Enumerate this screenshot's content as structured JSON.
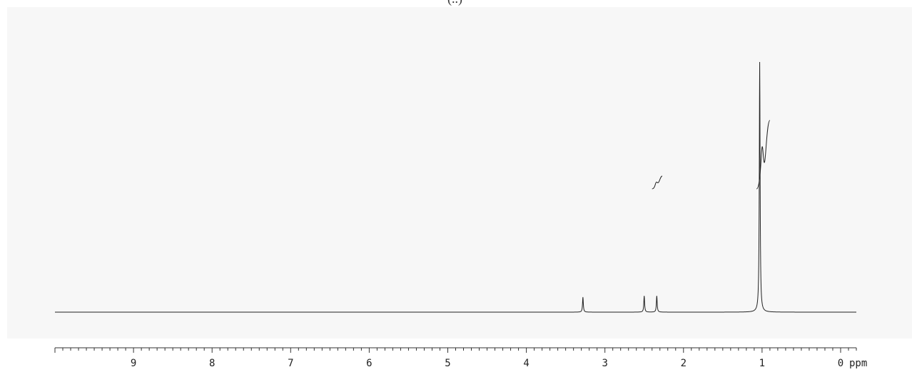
{
  "page": {
    "title_fragment": "(..)"
  },
  "colors": {
    "trace": "#222222",
    "axis": "#333333",
    "panel_bg": "#f7f7f7",
    "page_bg": "#ffffff"
  },
  "chart_data": {
    "type": "line",
    "title": "",
    "xlabel": "ppm",
    "ylabel": "",
    "xlim": [
      10.0,
      -0.2
    ],
    "x_reversed": true,
    "ylim": [
      0,
      100
    ],
    "grid": false,
    "x_major_ticks": [
      9,
      8,
      7,
      6,
      5,
      4,
      3,
      2,
      1,
      0
    ],
    "x_tick_labels": [
      "9",
      "8",
      "7",
      "6",
      "5",
      "4",
      "3",
      "2",
      "1",
      "0"
    ],
    "x_minor_step": 0.1,
    "peaks": [
      {
        "ppm": 3.28,
        "height": 6
      },
      {
        "ppm": 2.5,
        "height": 6.5
      },
      {
        "ppm": 2.34,
        "height": 6.5
      },
      {
        "ppm": 1.03,
        "height": 100
      }
    ],
    "integrals": [
      {
        "from": 2.4,
        "to": 2.27,
        "rise": 6
      },
      {
        "from": 1.07,
        "to": 0.9,
        "rise": 31
      }
    ]
  }
}
